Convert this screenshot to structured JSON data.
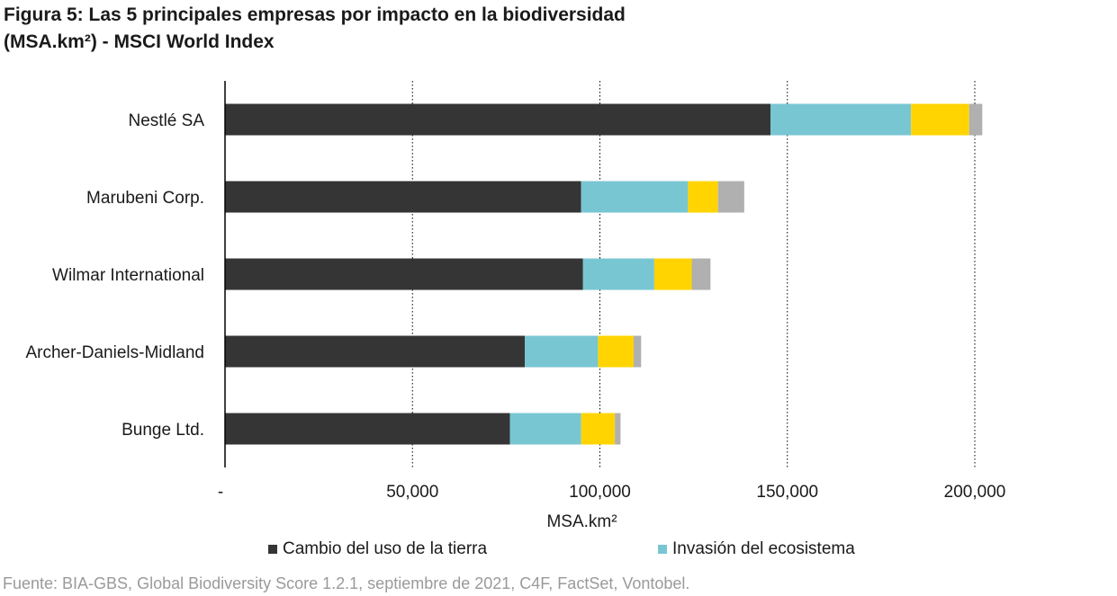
{
  "title_lines": [
    "Figura 5: Las 5 principales empresas por impacto en la biodiversidad",
    "(MSA.km²) - MSCI World Index"
  ],
  "source": "Fuente: BIA-GBS, Global Biodiversity Score 1.2.1, septiembre de 2021, C4F, FactSet, Vontobel.",
  "legend": [
    {
      "label": "Cambio del uso de la tierra",
      "color": "#353535"
    },
    {
      "label": "Invasión del ecosistema",
      "color": "#79c6d3"
    }
  ],
  "chart_data": {
    "type": "bar",
    "orientation": "horizontal",
    "stacked": true,
    "categories": [
      "Nestlé SA",
      "Marubeni Corp.",
      "Wilmar International",
      "Archer-Daniels-Midland",
      "Bunge Ltd."
    ],
    "series": [
      {
        "name": "Cambio del uso de la tierra",
        "color": "#353535",
        "values": [
          145500,
          95000,
          95500,
          80000,
          76000
        ]
      },
      {
        "name": "Invasión del ecosistema",
        "color": "#79c6d3",
        "values": [
          37500,
          28500,
          19000,
          19500,
          19000
        ]
      },
      {
        "color": "#ffd400",
        "values": [
          15500,
          8000,
          10000,
          9500,
          9000
        ]
      },
      {
        "color": "#b0b0b0",
        "values": [
          3500,
          7000,
          5000,
          2000,
          1500
        ]
      }
    ],
    "xlabel": "MSA.km²",
    "xlim": [
      0,
      200000
    ],
    "xticks": [
      0,
      50000,
      100000,
      150000,
      200000
    ],
    "xtick_labels": [
      "-",
      "50,000",
      "100,000",
      "150,000",
      "200,000"
    ],
    "grid": "vertical dotted",
    "legend_position": "bottom"
  }
}
